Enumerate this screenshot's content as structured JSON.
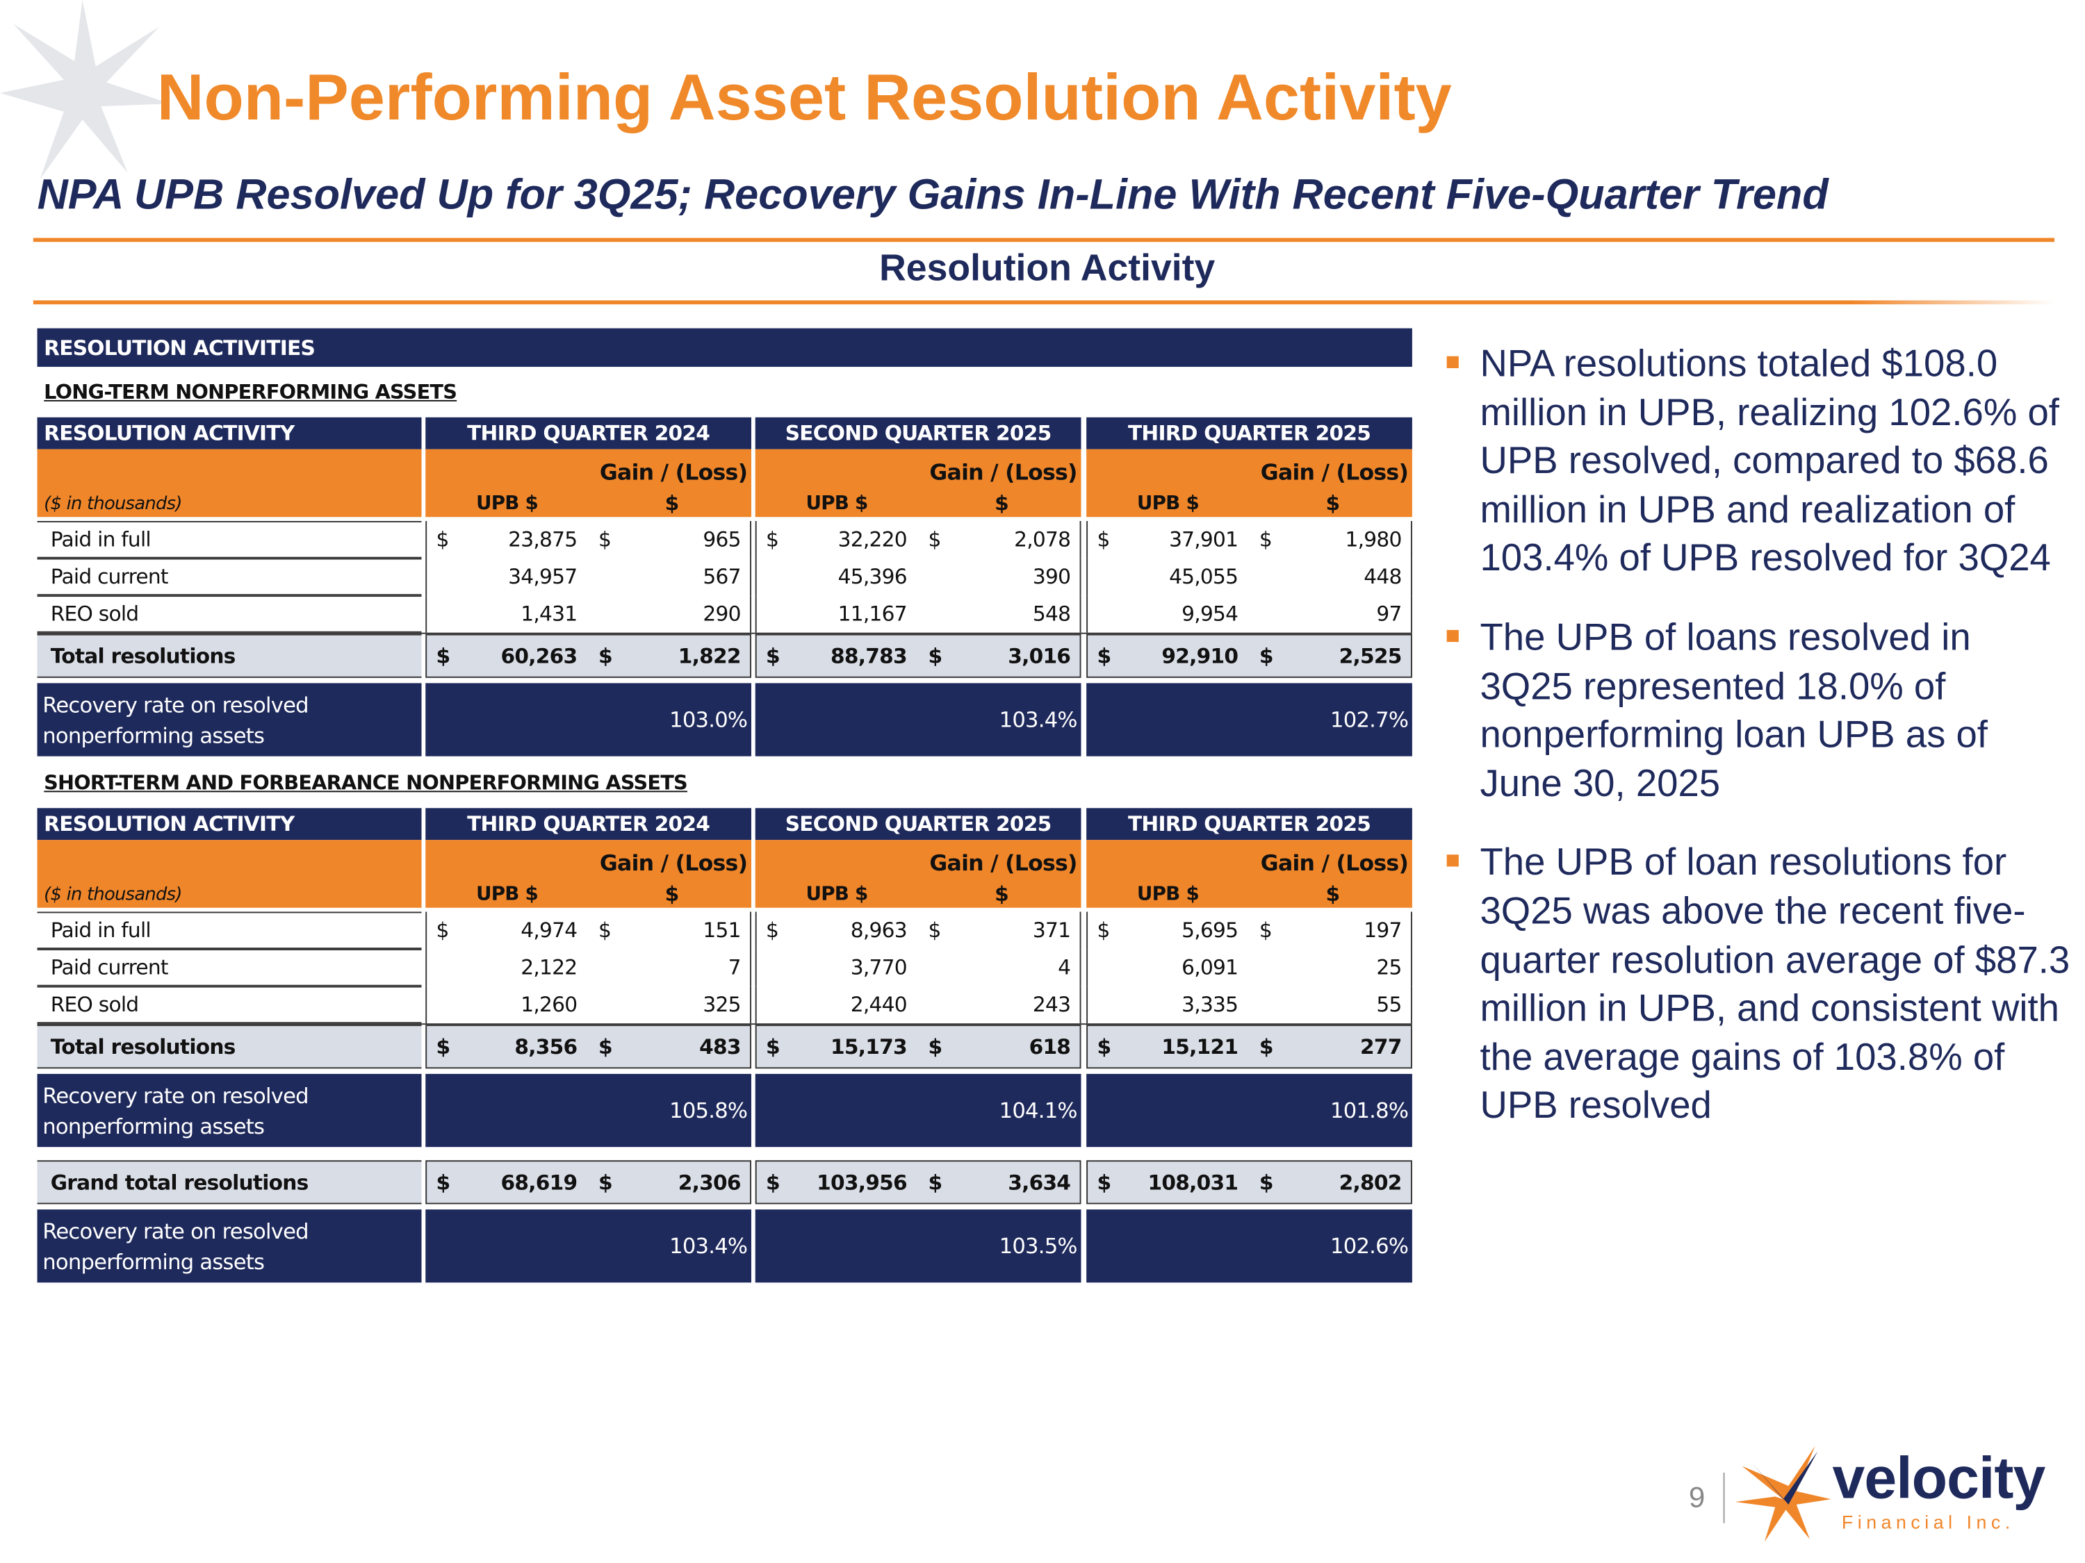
{
  "title": "Non-Performing Asset Resolution Activity",
  "subtitle": "NPA UPB Resolved Up for 3Q25; Recovery Gains In-Line With Recent Five-Quarter Trend",
  "section_title": "Resolution Activity",
  "table": {
    "header": "RESOLUTION ACTIVITIES",
    "sections": [
      {
        "title": "LONG-TERM NONPERFORMING ASSETS",
        "col_header": "RESOLUTION ACTIVITY",
        "periods": [
          "THIRD QUARTER 2024",
          "SECOND QUARTER 2025",
          "THIRD QUARTER 2025"
        ],
        "units": "($ in thousands)",
        "upb_label": "UPB $",
        "gain_label": "Gain / (Loss)",
        "gain_unit": "$",
        "rows": [
          {
            "label": "Paid in full",
            "currency": "$",
            "values": [
              "23,875",
              "965",
              "32,220",
              "2,078",
              "37,901",
              "1,980"
            ]
          },
          {
            "label": "Paid current",
            "values": [
              "34,957",
              "567",
              "45,396",
              "390",
              "45,055",
              "448"
            ]
          },
          {
            "label": "REO sold",
            "values": [
              "1,431",
              "290",
              "11,167",
              "548",
              "9,954",
              "97"
            ]
          }
        ],
        "total": {
          "label": "Total resolutions",
          "currency": "$",
          "values": [
            "60,263",
            "1,822",
            "88,783",
            "3,016",
            "92,910",
            "2,525"
          ]
        },
        "recovery": {
          "label": "Recovery rate on resolved nonperforming assets",
          "values": [
            "103.0%",
            "103.4%",
            "102.7%"
          ]
        }
      },
      {
        "title": "SHORT-TERM AND FORBEARANCE NONPERFORMING ASSETS",
        "col_header": "RESOLUTION ACTIVITY",
        "periods": [
          "THIRD QUARTER 2024",
          "SECOND QUARTER 2025",
          "THIRD QUARTER 2025"
        ],
        "units": "($ in thousands)",
        "upb_label": "UPB $",
        "gain_label": "Gain / (Loss)",
        "gain_unit": "$",
        "rows": [
          {
            "label": "Paid in full",
            "currency": "$",
            "values": [
              "4,974",
              "151",
              "8,963",
              "371",
              "5,695",
              "197"
            ]
          },
          {
            "label": "Paid current",
            "values": [
              "2,122",
              "7",
              "3,770",
              "4",
              "6,091",
              "25"
            ]
          },
          {
            "label": "REO sold",
            "values": [
              "1,260",
              "325",
              "2,440",
              "243",
              "3,335",
              "55"
            ]
          }
        ],
        "total": {
          "label": "Total resolutions",
          "currency": "$",
          "values": [
            "8,356",
            "483",
            "15,173",
            "618",
            "15,121",
            "277"
          ]
        },
        "recovery": {
          "label": "Recovery rate on resolved nonperforming assets",
          "values": [
            "105.8%",
            "104.1%",
            "101.8%"
          ]
        }
      }
    ],
    "grand_total": {
      "label": "Grand total resolutions",
      "currency": "$",
      "values": [
        "68,619",
        "2,306",
        "103,956",
        "3,634",
        "108,031",
        "2,802"
      ]
    },
    "grand_recovery": {
      "label": "Recovery rate on resolved nonperforming assets",
      "values": [
        "103.4%",
        "103.5%",
        "102.6%"
      ]
    }
  },
  "bullets": [
    "NPA resolutions totaled $108.0 million in UPB, realizing 102.6% of UPB resolved, compared to $68.6 million in UPB and realization of 103.4% of UPB resolved for 3Q24",
    "The UPB of loans resolved in 3Q25 represented 18.0% of nonperforming loan UPB as of June 30, 2025",
    "The UPB of loan resolutions for 3Q25 was above the recent five-quarter resolution average of $87.3 million in UPB, and consistent with the average gains of 103.8% of UPB resolved"
  ],
  "page_number": "9",
  "logo": {
    "name": "velocity",
    "tagline": "Financial Inc."
  }
}
